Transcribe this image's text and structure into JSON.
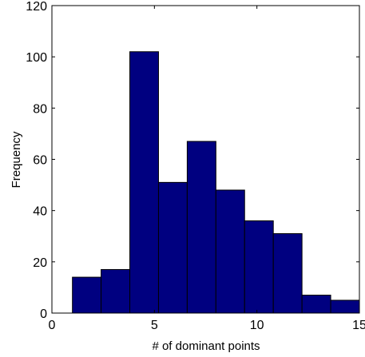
{
  "chart_data": {
    "type": "bar",
    "title": "",
    "xlabel": "# of dominant points",
    "ylabel": "Frequency",
    "xlim": [
      0,
      15
    ],
    "ylim": [
      0,
      120
    ],
    "xticks": [
      "0",
      "5",
      "10",
      "15"
    ],
    "yticks": [
      "0",
      "20",
      "40",
      "60",
      "80",
      "100",
      "120"
    ],
    "grid": false,
    "bar_color": "#000080",
    "bin_edges": [
      1,
      2.4,
      3.8,
      5.2,
      6.6,
      8.0,
      9.4,
      10.8,
      12.2,
      13.6,
      15
    ],
    "values": [
      14,
      17,
      102,
      51,
      67,
      48,
      36,
      31,
      7,
      5
    ]
  }
}
